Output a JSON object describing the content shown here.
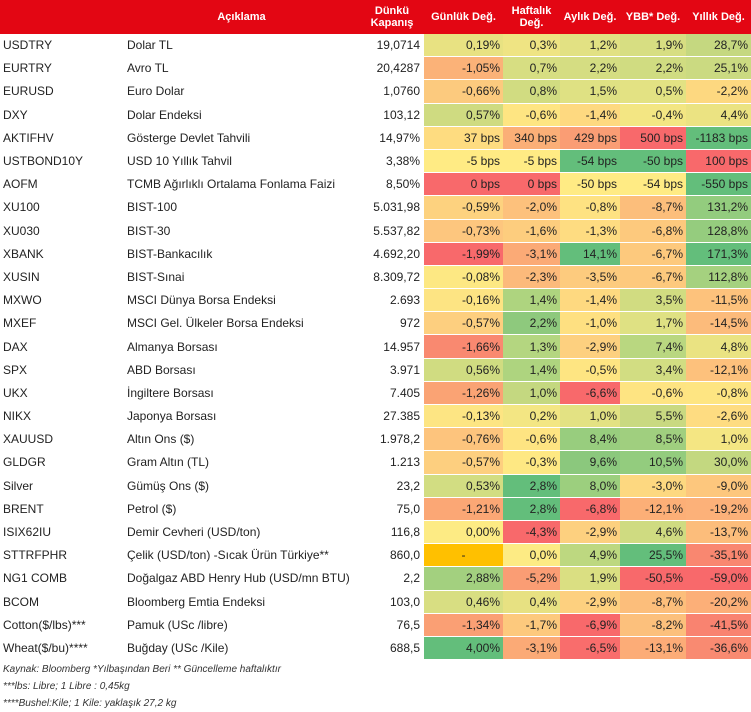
{
  "header": {
    "code": "",
    "description": "Açıklama",
    "close": "Dünkü Kapanış",
    "daily": "Günlük Değ.",
    "weekly": "Haftalık Değ.",
    "monthly": "Aylık Değ.",
    "ytd": "YBB* Değ.",
    "yearly": "Yıllık Değ."
  },
  "colors": {
    "header_bg": "#e30613",
    "red": "#f8696b",
    "green": "#63be7b",
    "yellow": "#ffeb84",
    "highlight": "#ffc000"
  },
  "rows": [
    {
      "code": "USDTRY",
      "desc": "Dolar TL",
      "close": "19,0714",
      "d": "0,19%",
      "w": "0,3%",
      "m": "1,2%",
      "y": "1,9%",
      "yy": "28,7%",
      "c": [
        "#e8e282",
        "#efe483",
        "#e2e183",
        "#d7de82",
        "#c5d880"
      ]
    },
    {
      "code": "EURTRY",
      "desc": "Avro TL",
      "close": "20,4287",
      "d": "-1,05%",
      "w": "0,7%",
      "m": "2,2%",
      "y": "2,2%",
      "yy": "25,1%",
      "c": [
        "#fbb278",
        "#d7de82",
        "#d5dd82",
        "#d0dc81",
        "#cbda81"
      ]
    },
    {
      "code": "EURUSD",
      "desc": "Euro Dolar",
      "close": "1,0760",
      "d": "-0,66%",
      "w": "0,8%",
      "m": "1,5%",
      "y": "0,5%",
      "yy": "-2,2%",
      "c": [
        "#fcca7e",
        "#d1dc81",
        "#dfe183",
        "#e3e283",
        "#fdd880"
      ]
    },
    {
      "code": "DXY",
      "desc": "Dolar Endeksi",
      "close": "103,12",
      "d": "0,57%",
      "w": "-0,6%",
      "m": "-1,4%",
      "y": "-0,4%",
      "yy": "4,4%",
      "c": [
        "#cfdb81",
        "#fee582",
        "#fed980",
        "#f3e683",
        "#ebe382"
      ]
    },
    {
      "code": "AKTIFHV",
      "desc": "Gösterge Devlet Tahvili",
      "close": "14,97%",
      "d": "37 bps",
      "w": "340 bps",
      "m": "429 bps",
      "y": "500 bps",
      "yy": "-1183 bps",
      "c": [
        "#fedc80",
        "#fbaf77",
        "#fa9d74",
        "#f8696b",
        "#63be7b"
      ]
    },
    {
      "code": "USTBOND10Y",
      "desc": "USD 10 Yıllık Tahvil",
      "close": "3,38%",
      "d": "-5 bps",
      "w": "-5 bps",
      "m": "-54 bps",
      "y": "-50 bps",
      "yy": "100 bps",
      "c": [
        "#ffeb84",
        "#ffeb84",
        "#63be7b",
        "#63be7b",
        "#f8696b"
      ]
    },
    {
      "code": "AOFM",
      "desc": "TCMB Ağırlıklı Ortalama Fonlama Faizi",
      "close": "8,50%",
      "d": "0 bps",
      "w": "0 bps",
      "m": "-50 bps",
      "y": "-54 bps",
      "yy": "-550 bps",
      "c": [
        "#f8696b",
        "#f8696b",
        "#ffeb84",
        "#ffeb84",
        "#63be7b"
      ]
    },
    {
      "code": "XU100",
      "desc": "BIST-100",
      "close": "5.031,98",
      "d": "-0,59%",
      "w": "-2,0%",
      "m": "-0,8%",
      "y": "-8,7%",
      "yy": "131,2%",
      "c": [
        "#fdd27f",
        "#fdc17c",
        "#fee282",
        "#fcbe7b",
        "#93cc7e"
      ]
    },
    {
      "code": "XU030",
      "desc": "BIST-30",
      "close": "5.537,82",
      "d": "-0,73%",
      "w": "-1,6%",
      "m": "-1,3%",
      "y": "-6,8%",
      "yy": "128,8%",
      "c": [
        "#fdc67e",
        "#fdcd7e",
        "#fedc81",
        "#fdc97d",
        "#95cc7e"
      ]
    },
    {
      "code": "XBANK",
      "desc": "BIST-Bankacılık",
      "close": "4.692,20",
      "d": "-1,99%",
      "w": "-3,1%",
      "m": "14,1%",
      "y": "-6,7%",
      "yy": "171,3%",
      "c": [
        "#f8696b",
        "#fbaa76",
        "#63be7b",
        "#fdc97d",
        "#63be7b"
      ]
    },
    {
      "code": "XUSIN",
      "desc": "BIST-Sınai",
      "close": "8.309,72",
      "d": "-0,08%",
      "w": "-2,3%",
      "m": "-3,5%",
      "y": "-6,7%",
      "yy": "112,8%",
      "c": [
        "#fde883",
        "#fcba7b",
        "#fdcb7e",
        "#fdc97d",
        "#a5d17f"
      ]
    },
    {
      "code": "MXWO",
      "desc": "MSCI Dünya Borsa Endeksi",
      "close": "2.693",
      "d": "-0,16%",
      "w": "1,4%",
      "m": "-1,4%",
      "y": "3,5%",
      "yy": "-11,5%",
      "c": [
        "#fde483",
        "#aed47f",
        "#fed980",
        "#d1dc81",
        "#fdc27c"
      ]
    },
    {
      "code": "MXEF",
      "desc": "MSCI Gel. Ülkeler Borsa Endeksi",
      "close": "972",
      "d": "-0,57%",
      "w": "2,2%",
      "m": "-1,0%",
      "y": "1,7%",
      "yy": "-14,5%",
      "c": [
        "#fdcf7f",
        "#8ec97d",
        "#fee081",
        "#dfe183",
        "#fcbb7b"
      ]
    },
    {
      "code": "DAX",
      "desc": "Almanya Borsası",
      "close": "14.957",
      "d": "-1,66%",
      "w": "1,3%",
      "m": "-2,9%",
      "y": "7,4%",
      "yy": "4,8%",
      "c": [
        "#f98970",
        "#b4d680",
        "#fdd07f",
        "#b9d780",
        "#eae382"
      ]
    },
    {
      "code": "SPX",
      "desc": "ABD Borsası",
      "close": "3.971",
      "d": "0,56%",
      "w": "1,4%",
      "m": "-0,5%",
      "y": "3,4%",
      "yy": "-12,1%",
      "c": [
        "#d0dc81",
        "#aed47f",
        "#fee582",
        "#d2dd82",
        "#fdc17c"
      ]
    },
    {
      "code": "UKX",
      "desc": "İngiltere Borsası",
      "close": "7.405",
      "d": "-1,26%",
      "w": "1,0%",
      "m": "-6,6%",
      "y": "-0,6%",
      "yy": "-0,8%",
      "c": [
        "#faa374",
        "#c4d880",
        "#f8696b",
        "#fee482",
        "#fee582"
      ]
    },
    {
      "code": "NIKX",
      "desc": "Japonya Borsası",
      "close": "27.385",
      "d": "-0,13%",
      "w": "0,2%",
      "m": "1,0%",
      "y": "5,5%",
      "yy": "-2,6%",
      "c": [
        "#fde583",
        "#f3e683",
        "#e3e283",
        "#c9d981",
        "#fedc81"
      ]
    },
    {
      "code": "XAUUSD",
      "desc": "Altın Ons ($)",
      "close": "1.978,2",
      "d": "-0,76%",
      "w": "-0,6%",
      "m": "8,4%",
      "y": "8,5%",
      "yy": "1,0%",
      "c": [
        "#fdc47d",
        "#fee482",
        "#98cd7e",
        "#a0cf7f",
        "#f4e683"
      ]
    },
    {
      "code": "GLDGR",
      "desc": "Gram Altın (TL)",
      "close": "1.213",
      "d": "-0,57%",
      "w": "-0,3%",
      "m": "9,6%",
      "y": "10,5%",
      "yy": "30,0%",
      "c": [
        "#fdcf7f",
        "#fee883",
        "#8bc87d",
        "#93cc7e",
        "#c3d880"
      ]
    },
    {
      "code": "Silver",
      "desc": "Gümüş Ons ($)",
      "close": "23,2",
      "d": "0,53%",
      "w": "2,8%",
      "m": "8,0%",
      "y": "-3,0%",
      "yy": "-9,0%",
      "c": [
        "#d2dd82",
        "#63be7b",
        "#9ccf7e",
        "#fdd880",
        "#fdc77d"
      ]
    },
    {
      "code": "BRENT",
      "desc": "Petrol ($)",
      "close": "75,0",
      "d": "-1,21%",
      "w": "2,8%",
      "m": "-6,8%",
      "y": "-12,1%",
      "yy": "-19,2%",
      "c": [
        "#fba775",
        "#63be7b",
        "#f8696b",
        "#fcaf77",
        "#fcb179"
      ]
    },
    {
      "code": "ISIX62IU",
      "desc": "Demir Cevheri (USD/ton)",
      "close": "116,8",
      "d": "0,00%",
      "w": "-4,3%",
      "m": "-2,9%",
      "y": "4,6%",
      "yy": "-13,7%",
      "c": [
        "#fdeb84",
        "#f8696b",
        "#fdd07f",
        "#cfdb81",
        "#fcbd7b"
      ]
    },
    {
      "code": "STTRFPHR",
      "desc": "Çelik (USD/ton) -Sıcak Ürün Türkiye**",
      "close": "860,0",
      "d": "-",
      "w": "0,0%",
      "m": "4,9%",
      "y": "25,5%",
      "yy": "-35,1%",
      "c": [
        "#ffc000",
        "#fdeb84",
        "#bdd880",
        "#63be7b",
        "#f98770"
      ]
    },
    {
      "code": "NG1 COMB",
      "desc": "Doğalgaz ABD Henry Hub (USD/mn BTU)",
      "close": "2,2",
      "d": "2,88%",
      "w": "-5,2%",
      "m": "1,9%",
      "y": "-50,5%",
      "yy": "-59,0%",
      "c": [
        "#a3d07f",
        "#fa9d74",
        "#dadf82",
        "#f8696b",
        "#f8696b"
      ]
    },
    {
      "code": "BCOM",
      "desc": "Bloomberg Emtia Endeksi",
      "close": "103,0",
      "d": "0,46%",
      "w": "0,4%",
      "m": "-2,9%",
      "y": "-8,7%",
      "yy": "-20,2%",
      "c": [
        "#d8de82",
        "#e7e182",
        "#fdd07f",
        "#fcbe7b",
        "#fcaf78"
      ]
    },
    {
      "code": "Cotton($/lbs)***",
      "desc": "Pamuk (USc /libre)",
      "close": "76,5",
      "d": "-1,34%",
      "w": "-1,7%",
      "m": "-6,9%",
      "y": "-8,2%",
      "yy": "-41,5%",
      "c": [
        "#fa9f74",
        "#fdc97d",
        "#f8696b",
        "#fcc07c",
        "#f98370"
      ]
    },
    {
      "code": "Wheat($/bu)****",
      "desc": "Buğday (USc /Kile)",
      "close": "688,5",
      "d": "4,00%",
      "w": "-3,1%",
      "m": "-6,5%",
      "y": "-13,1%",
      "yy": "-36,6%",
      "c": [
        "#63be7b",
        "#fbaa76",
        "#f96d6c",
        "#fcac77",
        "#f98a71"
      ]
    }
  ],
  "notes": [
    "Kaynak: Bloomberg *Yılbaşından Beri  ** Güncelleme haftalıktır",
    "***lbs: Libre; 1 Libre : 0,45kg",
    "****Bushel:Kile; 1 Kile: yaklaşık 27,2 kg"
  ]
}
